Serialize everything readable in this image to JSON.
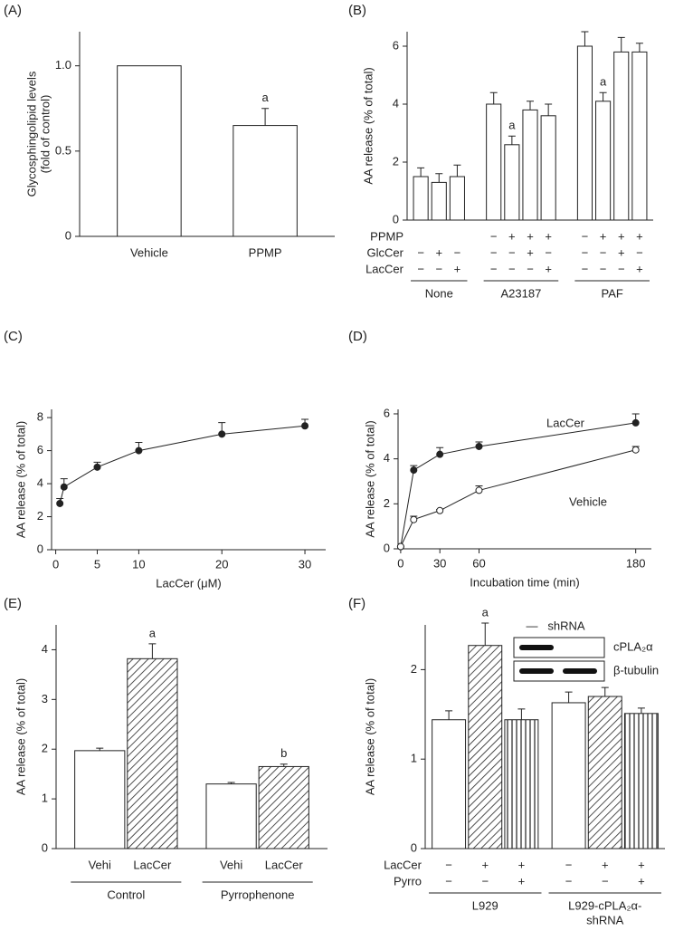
{
  "chart_data": [
    {
      "type": "bar",
      "panel": "(A)",
      "y_label": [
        "Glycosphingolipid  levels",
        "(fold of control)"
      ],
      "ylim": [
        0,
        1.2
      ],
      "yticks": [
        0,
        0.5,
        {
          "value": 1,
          "label": "1.0"
        }
      ],
      "groups": [
        {
          "categories": [
            "Vehicle",
            "PPMP"
          ],
          "values": [
            1,
            0.65
          ],
          "errors": [
            null,
            0.1
          ],
          "annotations": [
            null,
            "a"
          ],
          "fills": [
            "white",
            "white"
          ]
        }
      ]
    },
    {
      "type": "bar",
      "panel": "(B)",
      "y_label": "AA release (% of total)",
      "ylim": [
        0,
        6.5
      ],
      "yticks": [
        0,
        2,
        4,
        6
      ],
      "row_labels": [
        "PPMP",
        "GlcCer",
        "LacCer"
      ],
      "groups": [
        {
          "label": "None",
          "values": [
            1.5,
            1.3,
            1.5
          ],
          "errors": [
            0.3,
            0.3,
            0.4
          ],
          "annotations": [
            null,
            null,
            null
          ],
          "fills": [
            "white",
            "white",
            "white"
          ],
          "signs": [
            [
              null,
              null,
              null
            ],
            [
              "−",
              "+",
              "−"
            ],
            [
              "−",
              "−",
              "+"
            ]
          ]
        },
        {
          "label": "A23187",
          "values": [
            4.0,
            2.6,
            3.8,
            3.6
          ],
          "errors": [
            0.4,
            0.3,
            0.3,
            0.4
          ],
          "annotations": [
            null,
            "a",
            null,
            null
          ],
          "fills": [
            "white",
            "white",
            "white",
            "white"
          ],
          "signs": [
            [
              "−",
              "+",
              "+",
              "+"
            ],
            [
              "−",
              "−",
              "+",
              "−"
            ],
            [
              "−",
              "−",
              "−",
              "+"
            ]
          ]
        },
        {
          "label": "PAF",
          "values": [
            6.0,
            4.1,
            5.8,
            5.8
          ],
          "errors": [
            0.5,
            0.3,
            0.5,
            0.3
          ],
          "annotations": [
            null,
            "a",
            null,
            null
          ],
          "fills": [
            "white",
            "white",
            "white",
            "white"
          ],
          "signs": [
            [
              "−",
              "+",
              "+",
              "+"
            ],
            [
              "−",
              "−",
              "+",
              "−"
            ],
            [
              "−",
              "−",
              "−",
              "+"
            ]
          ]
        }
      ]
    },
    {
      "type": "line",
      "panel": "(C)",
      "y_label": "AA release (% of total)",
      "x_label": "LacCer (μM)",
      "xlim": [
        -0.5,
        32.5
      ],
      "ylim": [
        0,
        8.5
      ],
      "xticks": [
        0,
        5,
        10,
        20,
        30
      ],
      "yticks": [
        0,
        2,
        4,
        6,
        8
      ],
      "series": [
        {
          "marker": "filled",
          "x": [
            0.5,
            1,
            5,
            10,
            20,
            30
          ],
          "values": [
            2.8,
            3.8,
            5.0,
            6.0,
            7.0,
            7.5
          ],
          "errors": [
            0.3,
            0.5,
            0.3,
            0.5,
            0.7,
            0.4
          ]
        }
      ]
    },
    {
      "type": "line",
      "panel": "(D)",
      "y_label": "AA release (% of total)",
      "x_label": "Incubation time (min)",
      "xlim": [
        -2,
        192
      ],
      "ylim": [
        0,
        6.2
      ],
      "xticks": [
        0,
        30,
        60,
        180
      ],
      "yticks": [
        0,
        2,
        4,
        6
      ],
      "series": [
        {
          "name": "LacCer",
          "marker": "filled",
          "x": [
            0,
            10,
            30,
            60,
            180
          ],
          "values": [
            0.1,
            3.5,
            4.2,
            4.55,
            5.6
          ],
          "errors": [
            null,
            0.2,
            0.3,
            0.2,
            0.4
          ]
        },
        {
          "name": "Vehicle",
          "marker": "open",
          "x": [
            0,
            10,
            30,
            60,
            180
          ],
          "values": [
            0.1,
            1.3,
            1.7,
            2.6,
            4.4
          ],
          "errors": [
            null,
            0.15,
            0.05,
            0.2,
            0.15
          ]
        }
      ]
    },
    {
      "type": "bar",
      "panel": "(E)",
      "y_label": "AA release (% of total)",
      "ylim": [
        0,
        4.5
      ],
      "yticks": [
        0,
        1,
        2,
        3,
        4
      ],
      "groups": [
        {
          "label": "Control",
          "categories": [
            "Vehi",
            "LacCer"
          ],
          "values": [
            1.97,
            3.82
          ],
          "errors": [
            0.05,
            0.3
          ],
          "annotations": [
            null,
            "a"
          ],
          "fills": [
            "white",
            "hatch"
          ]
        },
        {
          "label": "Pyrrophenone",
          "categories": [
            "Vehi",
            "LacCer"
          ],
          "values": [
            1.3,
            1.65
          ],
          "errors": [
            0.03,
            0.05
          ],
          "annotations": [
            null,
            "b"
          ],
          "fills": [
            "white",
            "hatch"
          ]
        }
      ]
    },
    {
      "type": "bar",
      "panel": "(F)",
      "y_label": "AA release (% of total)",
      "ylim": [
        0,
        2.5
      ],
      "yticks": [
        0,
        1,
        2
      ],
      "row_labels": [
        "LacCer",
        "Pyrro"
      ],
      "groups": [
        {
          "label": "L929",
          "values": [
            1.44,
            2.27,
            1.44
          ],
          "errors": [
            0.1,
            0.25,
            0.12
          ],
          "annotations": [
            null,
            "a",
            null
          ],
          "fills": [
            "white",
            "hatch",
            "vertical"
          ],
          "signs": [
            [
              "−",
              "+",
              "+"
            ],
            [
              "−",
              "−",
              "+"
            ]
          ]
        },
        {
          "label": [
            "L929-cPLA₂α-",
            "shRNA"
          ],
          "values": [
            1.63,
            1.7,
            1.51
          ],
          "errors": [
            0.12,
            0.1,
            0.06
          ],
          "annotations": [
            null,
            null,
            null
          ],
          "fills": [
            "white",
            "hatch",
            "vertical"
          ],
          "signs": [
            [
              "−",
              "+",
              "+"
            ],
            [
              "−",
              "−",
              "+"
            ]
          ]
        }
      ],
      "inset": {
        "header": [
          "—",
          "shRNA"
        ],
        "bands": [
          "cPLA₂α",
          "β-tubulin"
        ]
      }
    }
  ]
}
